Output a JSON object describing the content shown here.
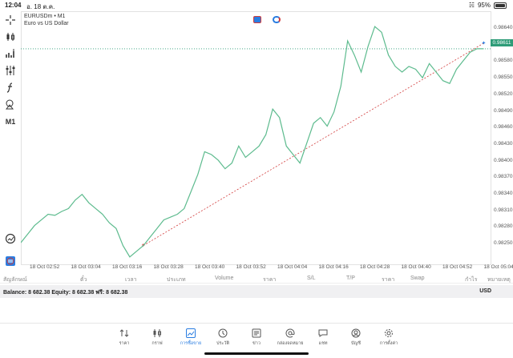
{
  "status_bar": {
    "time": "12:04",
    "date": "อ. 18 ต.ค.",
    "battery": "95%"
  },
  "chart": {
    "symbol_line": "EURUSDm • M1",
    "description": "Euro vs US Dollar",
    "current_price_tag": "0.98611",
    "colors": {
      "line": "#5dbb8e",
      "price_line": "#2e9c78",
      "trend_line": "#d23c3c"
    },
    "y_labels": [
      "0.98640",
      "0.98610",
      "0.98580",
      "0.98550",
      "0.98520",
      "0.98490",
      "0.98460",
      "0.98430",
      "0.98400",
      "0.98370",
      "0.98340",
      "0.98310",
      "0.98280",
      "0.98250"
    ],
    "x_labels": [
      "18 Oct 02:52",
      "18 Oct 03:04",
      "18 Oct 03:16",
      "18 Oct 03:28",
      "18 Oct 03:40",
      "18 Oct 03:52",
      "18 Oct 04:04",
      "18 Oct 04:16",
      "18 Oct 04:28",
      "18 Oct 04:40",
      "18 Oct 04:52",
      "18 Oct 05:04"
    ]
  },
  "chart_data": {
    "type": "line",
    "x": [
      "02:46",
      "02:48",
      "02:50",
      "02:52",
      "02:54",
      "02:56",
      "02:58",
      "03:00",
      "03:02",
      "03:04",
      "03:06",
      "03:08",
      "03:10",
      "03:12",
      "03:14",
      "03:16",
      "03:18",
      "03:20",
      "03:22",
      "03:24",
      "03:26",
      "03:28",
      "03:30",
      "03:32",
      "03:34",
      "03:36",
      "03:38",
      "03:40",
      "03:42",
      "03:44",
      "03:46",
      "03:48",
      "03:50",
      "03:52",
      "03:54",
      "03:56",
      "03:58",
      "04:00",
      "04:02",
      "04:04",
      "04:06",
      "04:08",
      "04:10",
      "04:12",
      "04:14",
      "04:16",
      "04:18",
      "04:20",
      "04:22",
      "04:24",
      "04:26",
      "04:28",
      "04:30",
      "04:32",
      "04:34",
      "04:36",
      "04:38",
      "04:40",
      "04:42",
      "04:44",
      "04:46",
      "04:48",
      "04:50",
      "04:52",
      "04:54",
      "04:56",
      "04:58",
      "05:00",
      "05:02"
    ],
    "series": [
      {
        "values": [
          0.9827,
          0.98285,
          0.983,
          0.9831,
          0.9832,
          0.98318,
          0.98325,
          0.9833,
          0.98345,
          0.98355,
          0.9834,
          0.9833,
          0.9832,
          0.98305,
          0.98295,
          0.98265,
          0.98245,
          0.98255,
          0.98265,
          0.9828,
          0.98295,
          0.9831,
          0.98315,
          0.9832,
          0.9833,
          0.9836,
          0.9839,
          0.9843,
          0.98425,
          0.98415,
          0.984,
          0.9841,
          0.9844,
          0.9842,
          0.9843,
          0.9844,
          0.9846,
          0.98505,
          0.9849,
          0.9844,
          0.98425,
          0.9841,
          0.98445,
          0.9848,
          0.9849,
          0.98475,
          0.985,
          0.98545,
          0.98625,
          0.986,
          0.9857,
          0.98615,
          0.9865,
          0.9864,
          0.986,
          0.9858,
          0.9857,
          0.9858,
          0.98575,
          0.9856,
          0.98585,
          0.9857,
          0.98555,
          0.9855,
          0.98575,
          0.9859,
          0.98605,
          0.98611,
          0.98611
        ]
      }
    ],
    "ylim": [
      0.98232,
      0.98663
    ],
    "grid": false,
    "annotations": [
      {
        "type": "trendline",
        "from": [
          "03:22",
          0.98265
        ],
        "to": [
          "05:02",
          0.98621
        ]
      }
    ]
  },
  "table_header": [
    "สัญลักษณ์",
    "ตั๋ว",
    "เวลา",
    "ประเภท",
    "Volume",
    "ราคา",
    "S/L",
    "T/P",
    "ราคา",
    "Swap",
    "กำไร",
    "หมายเหตุ"
  ],
  "balance": {
    "text": "Balance: 8 682.38 Equity: 8 682.38 ฟรี: 8 682.38",
    "currency": "USD"
  },
  "tabs": [
    {
      "label": "ราคา",
      "icon": "arrows-updown-icon"
    },
    {
      "label": "กราฟ",
      "icon": "candles-icon"
    },
    {
      "label": "การซื้อขาย",
      "icon": "trade-chart-icon",
      "active": true
    },
    {
      "label": "ประวัติ",
      "icon": "history-icon"
    },
    {
      "label": "ข่าว",
      "icon": "news-icon"
    },
    {
      "label": "กล่องจดหมาย",
      "icon": "mailbox-icon"
    },
    {
      "label": "แชท",
      "icon": "chat-icon"
    },
    {
      "label": "บัญชี",
      "icon": "account-icon"
    },
    {
      "label": "การตั้งค่า",
      "icon": "settings-icon"
    }
  ]
}
